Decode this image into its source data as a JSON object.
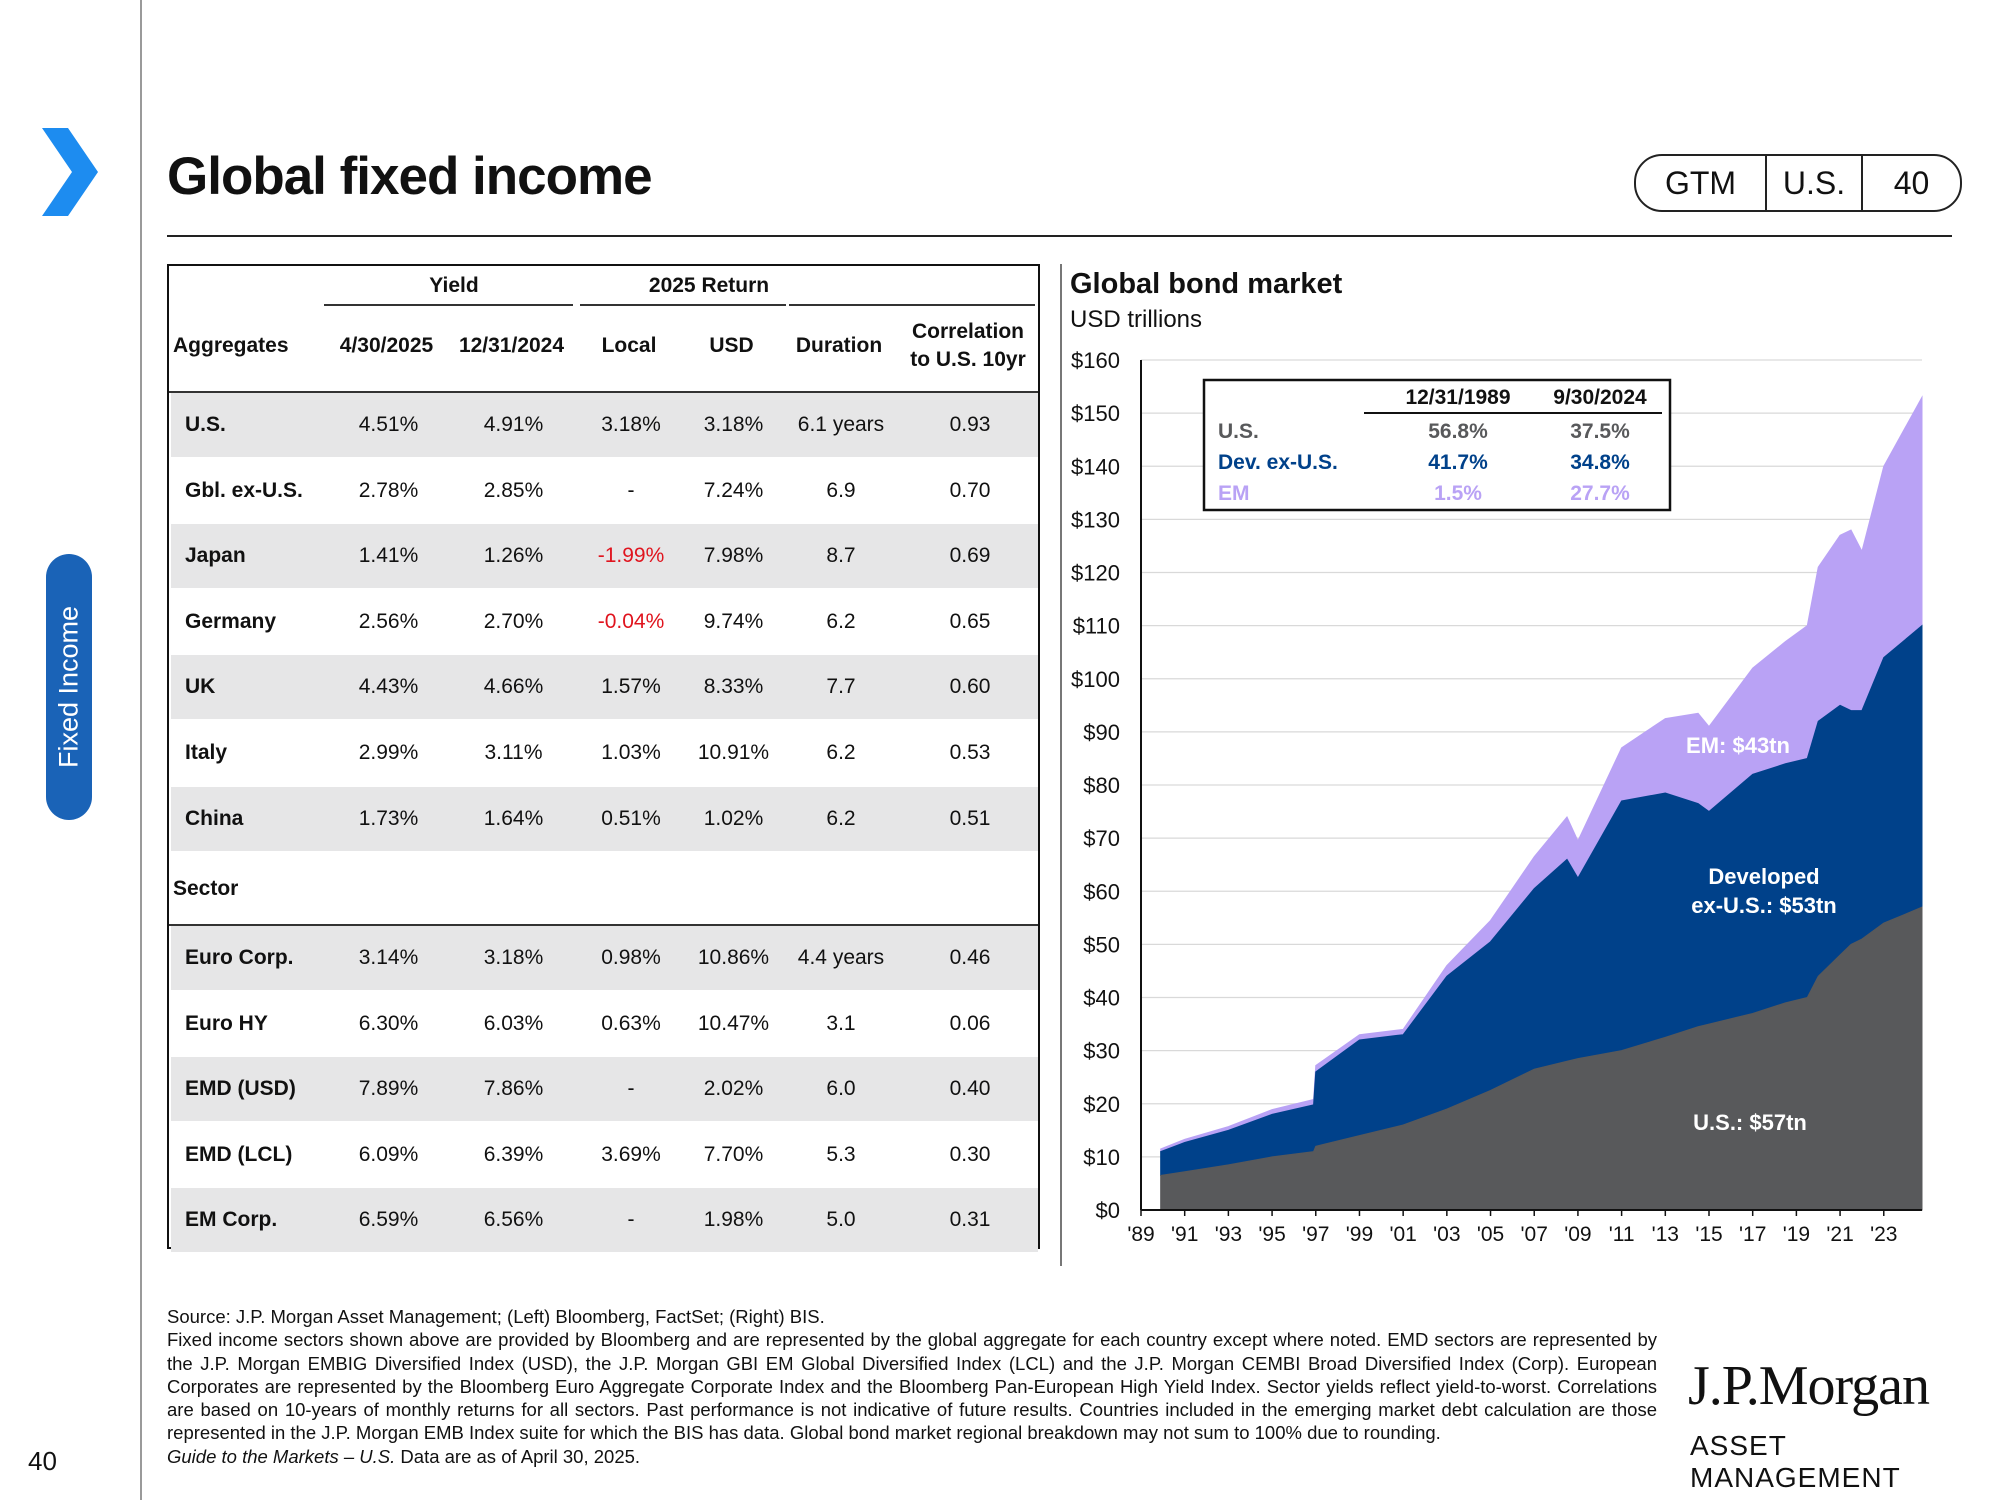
{
  "header": {
    "title": "Global fixed income",
    "badge": [
      "GTM",
      "U.S.",
      "40"
    ]
  },
  "sidebar": {
    "label": "Fixed Income",
    "page_number": "40"
  },
  "table": {
    "group_headers": {
      "yield": "Yield",
      "return": "2025 Return"
    },
    "columns": [
      "Aggregates",
      "4/30/2025",
      "12/31/2024",
      "Local",
      "USD",
      "Duration",
      "Correlation",
      "to U.S. 10yr"
    ],
    "aggregates": [
      [
        "U.S.",
        "4.51%",
        "4.91%",
        "3.18%",
        "3.18%",
        "6.1 years",
        "0.93"
      ],
      [
        "Gbl. ex-U.S.",
        "2.78%",
        "2.85%",
        "-",
        "7.24%",
        "6.9",
        "0.70"
      ],
      [
        "Japan",
        "1.41%",
        "1.26%",
        "-1.99%",
        "7.98%",
        "8.7",
        "0.69"
      ],
      [
        "Germany",
        "2.56%",
        "2.70%",
        "-0.04%",
        "9.74%",
        "6.2",
        "0.65"
      ],
      [
        "UK",
        "4.43%",
        "4.66%",
        "1.57%",
        "8.33%",
        "7.7",
        "0.60"
      ],
      [
        "Italy",
        "2.99%",
        "3.11%",
        "1.03%",
        "10.91%",
        "6.2",
        "0.53"
      ],
      [
        "China",
        "1.73%",
        "1.64%",
        "0.51%",
        "1.02%",
        "6.2",
        "0.51"
      ]
    ],
    "sector_label": "Sector",
    "sectors": [
      [
        "Euro Corp.",
        "3.14%",
        "3.18%",
        "0.98%",
        "10.86%",
        "4.4 years",
        "0.46"
      ],
      [
        "Euro HY",
        "6.30%",
        "6.03%",
        "0.63%",
        "10.47%",
        "3.1",
        "0.06"
      ],
      [
        "EMD (USD)",
        "7.89%",
        "7.86%",
        "-",
        "2.02%",
        "6.0",
        "0.40"
      ],
      [
        "EMD (LCL)",
        "6.09%",
        "6.39%",
        "3.69%",
        "7.70%",
        "5.3",
        "0.30"
      ],
      [
        "EM Corp.",
        "6.59%",
        "6.56%",
        "-",
        "1.98%",
        "5.0",
        "0.31"
      ]
    ]
  },
  "chart_data": {
    "type": "area",
    "title": "Global bond market",
    "subtitle": "USD trillions",
    "ylim": [
      0,
      160
    ],
    "y_ticks": [
      "$0",
      "$10",
      "$20",
      "$30",
      "$40",
      "$50",
      "$60",
      "$70",
      "$80",
      "$90",
      "$100",
      "$110",
      "$120",
      "$130",
      "$140",
      "$150",
      "$160"
    ],
    "x_ticks": [
      "'89",
      "'91",
      "'93",
      "'95",
      "'97",
      "'99",
      "'01",
      "'03",
      "'05",
      "'07",
      "'09",
      "'11",
      "'13",
      "'15",
      "'17",
      "'19",
      "'21",
      "'23"
    ],
    "x": [
      1989.9,
      1991,
      1993,
      1995,
      1996.9,
      1997,
      1999,
      2001,
      2003,
      2005,
      2007,
      2008.5,
      2009,
      2011,
      2013,
      2014.5,
      2015,
      2017,
      2018.5,
      2019.5,
      2020,
      2021,
      2021.5,
      2022,
      2023,
      2024.75
    ],
    "series": [
      {
        "name": "U.S.",
        "color": "#58595b",
        "values": [
          6.5,
          7.2,
          8.5,
          10,
          11,
          12,
          14,
          16,
          19,
          22.5,
          26.5,
          28,
          28.5,
          30,
          32.5,
          34.5,
          35,
          37,
          39,
          40,
          44,
          48,
          50,
          51,
          54,
          57
        ]
      },
      {
        "name": "Developed ex-U.S.",
        "color": "#00418a",
        "values": [
          4.5,
          5.5,
          6.5,
          8,
          8.8,
          14,
          18,
          17,
          25,
          28,
          34,
          38,
          34,
          47,
          46,
          42,
          40,
          45,
          45,
          45,
          48,
          47,
          44,
          43,
          50,
          53
        ]
      },
      {
        "name": "EM",
        "color": "#b9a2f5",
        "values": [
          0.5,
          0.6,
          0.7,
          0.9,
          1,
          1.2,
          1,
          1,
          2,
          4,
          6,
          8,
          7,
          10,
          14,
          17,
          16,
          20,
          23,
          25,
          29,
          32,
          34,
          30,
          36,
          43
        ]
      }
    ],
    "annotations": {
      "em": "EM: $43tn",
      "dev_line1": "Developed",
      "dev_line2": "ex-U.S.: $53tn",
      "us": "U.S.:  $57tn"
    },
    "inset_table": {
      "headers": [
        "12/31/1989",
        "9/30/2024"
      ],
      "rows": [
        {
          "label": "U.S.",
          "v1": "56.8%",
          "v2": "37.5%",
          "color": "#58595b"
        },
        {
          "label": "Dev. ex-U.S.",
          "v1": "41.7%",
          "v2": "34.8%",
          "color": "#00418a"
        },
        {
          "label": "EM",
          "v1": "1.5%",
          "v2": "27.7%",
          "color": "#b9a2f5"
        }
      ]
    }
  },
  "footnotes": {
    "source": "Source: J.P. Morgan Asset Management; (Left) Bloomberg, FactSet; (Right) BIS.",
    "body": "Fixed income sectors shown above are provided by Bloomberg and are represented by the global aggregate for each country except where noted. EMD sectors are represented by the J.P. Morgan EMBIG Diversified Index (USD), the J.P. Morgan GBI EM Global Diversified Index (LCL) and the J.P. Morgan CEMBI Broad Diversified Index (Corp). European Corporates are represented by the Bloomberg Euro Aggregate Corporate Index and the Bloomberg Pan-European High Yield Index. Sector yields reflect yield-to-worst. Correlations are based on 10-years of monthly returns for all sectors. Past performance is not indicative of future results. Countries included in the emerging market debt calculation are those represented in the J.P. Morgan EMB Index suite for which the BIS has data. Global bond market regional breakdown may not sum to 100% due to rounding.",
    "guide_italic": "Guide to the Markets – U.S.",
    "guide_rest": " Data are as of April 30, 2025."
  },
  "logo": {
    "line1": "J.P.Morgan",
    "line2": "ASSET MANAGEMENT"
  },
  "colors": {
    "accent": "#1a63b7",
    "negative": "#e0141e",
    "row_shade": "#e6e6e7"
  }
}
